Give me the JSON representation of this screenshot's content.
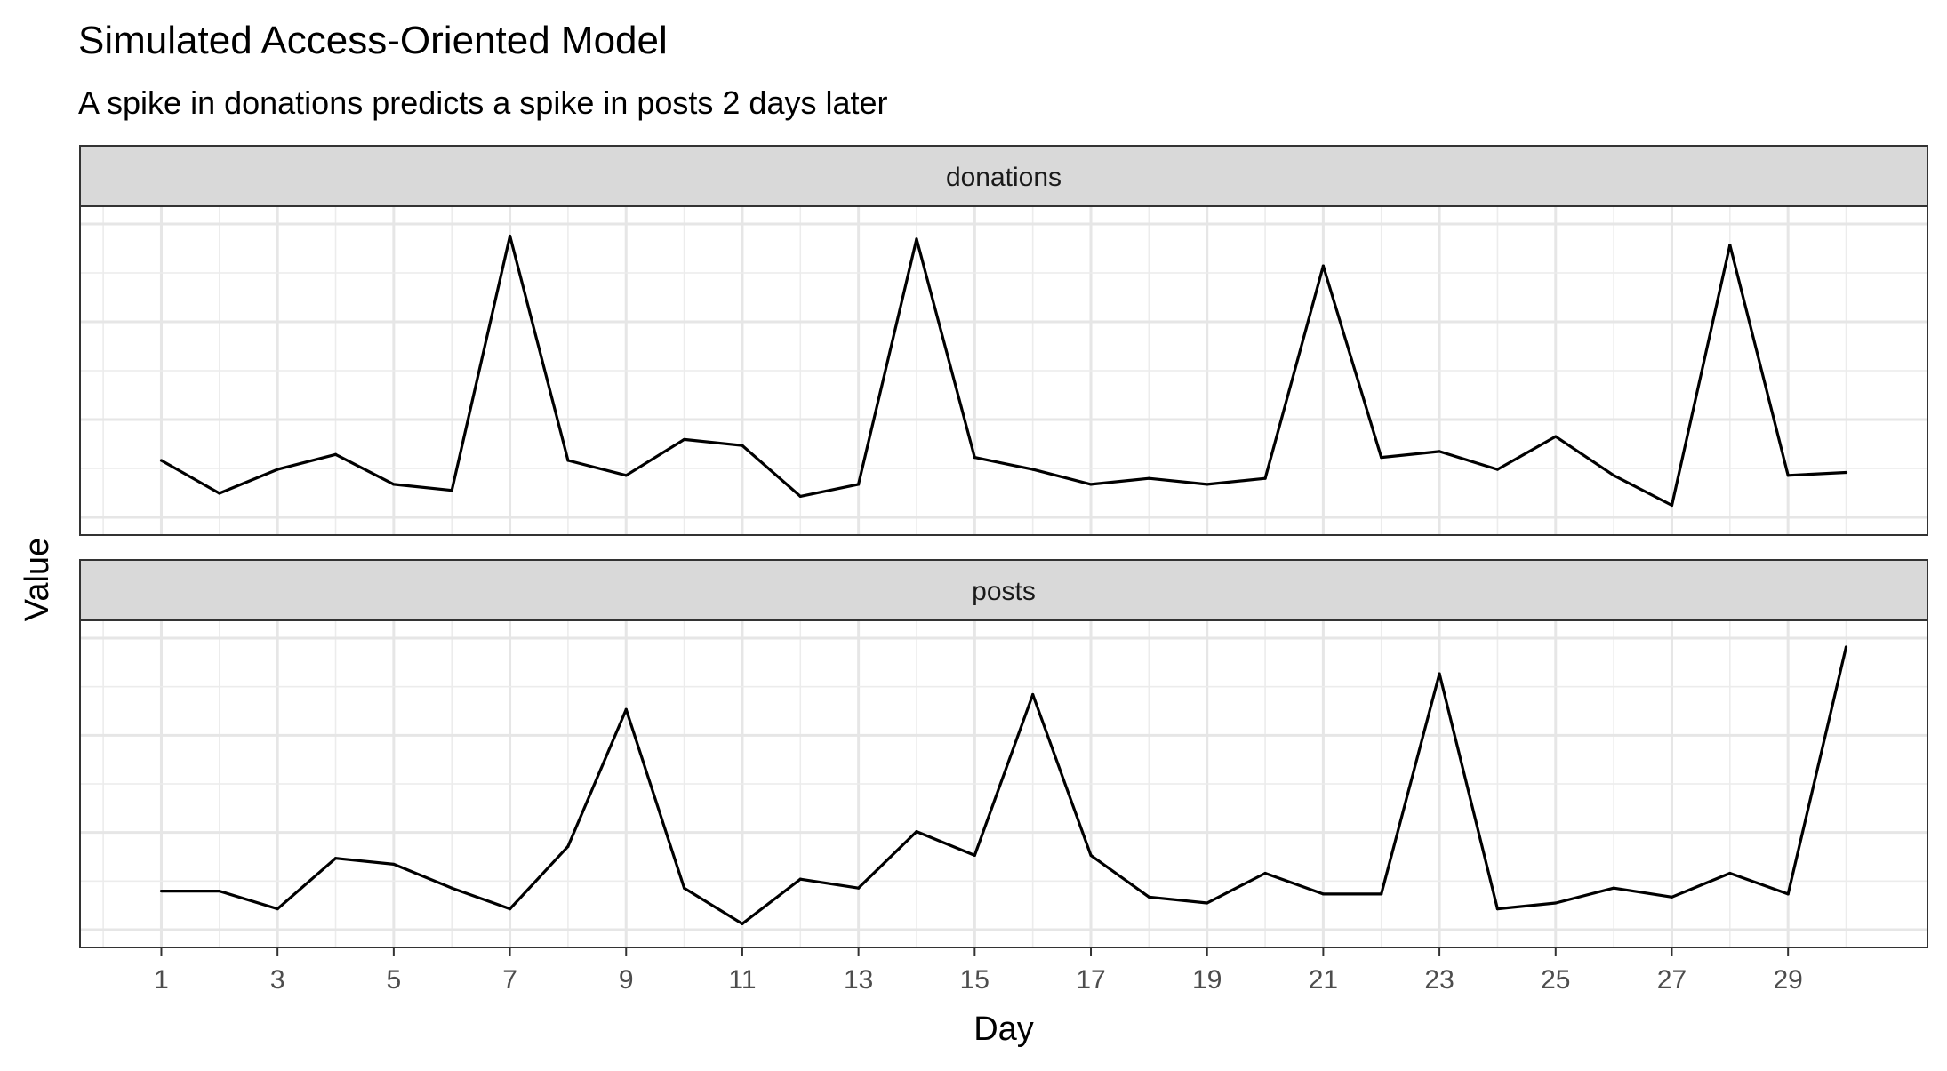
{
  "chart_data": {
    "type": "line",
    "title": "Simulated Access-Oriented Model",
    "subtitle": "A spike in donations predicts a spike in posts 2 days later",
    "xlabel": "Day",
    "ylabel": "Value",
    "x": [
      1,
      2,
      3,
      4,
      5,
      6,
      7,
      8,
      9,
      10,
      11,
      12,
      13,
      14,
      15,
      16,
      17,
      18,
      19,
      20,
      21,
      22,
      23,
      24,
      25,
      26,
      27,
      28,
      29,
      30
    ],
    "x_tick_labels": [
      "1",
      "3",
      "5",
      "7",
      "9",
      "11",
      "13",
      "15",
      "17",
      "19",
      "21",
      "23",
      "25",
      "27",
      "29"
    ],
    "xlim": [
      -0.4,
      31.4
    ],
    "grid": true,
    "facets": [
      {
        "strip_label": "donations",
        "ylim": [
          0,
          1
        ],
        "y_scale_labels_shown": false,
        "values": [
          0.2,
          0.09,
          0.17,
          0.22,
          0.12,
          0.1,
          0.95,
          0.2,
          0.15,
          0.27,
          0.25,
          0.08,
          0.12,
          0.94,
          0.21,
          0.17,
          0.12,
          0.14,
          0.12,
          0.14,
          0.85,
          0.21,
          0.23,
          0.17,
          0.28,
          0.15,
          0.05,
          0.92,
          0.15,
          0.16
        ]
      },
      {
        "strip_label": "posts",
        "ylim": [
          0,
          1
        ],
        "y_scale_labels_shown": false,
        "values": [
          0.14,
          0.14,
          0.08,
          0.25,
          0.23,
          0.15,
          0.08,
          0.29,
          0.75,
          0.15,
          0.03,
          0.18,
          0.15,
          0.34,
          0.26,
          0.8,
          0.26,
          0.12,
          0.1,
          0.2,
          0.13,
          0.13,
          0.87,
          0.08,
          0.1,
          0.15,
          0.12,
          0.2,
          0.13,
          0.96
        ]
      }
    ]
  }
}
